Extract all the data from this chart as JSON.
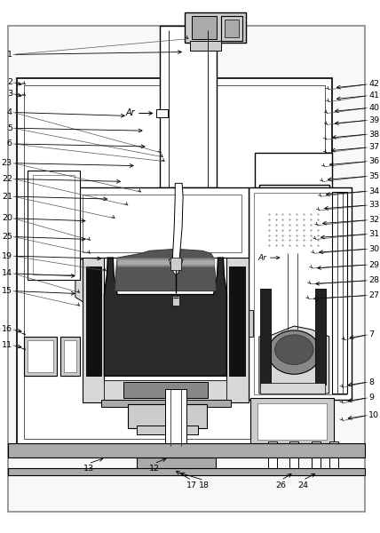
{
  "bg_color": "#ffffff",
  "lc": "#000000",
  "gray1": "#aaaaaa",
  "gray2": "#cccccc",
  "gray3": "#888888",
  "dark": "#333333",
  "black": "#000000",
  "stipple": "#d0d0d0",
  "mid_gray": "#999999"
}
